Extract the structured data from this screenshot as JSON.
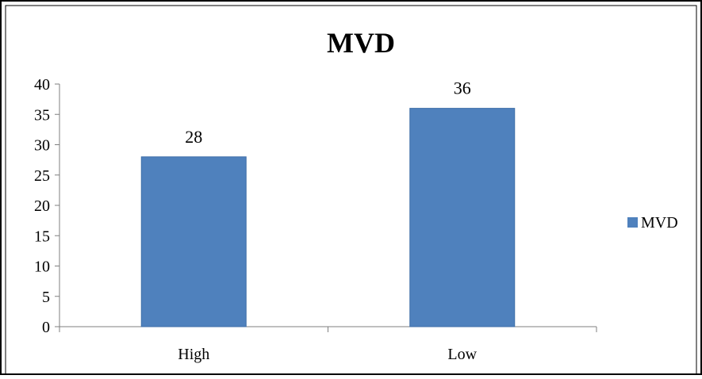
{
  "chart_data": {
    "type": "bar",
    "title": "MVD",
    "categories": [
      "High",
      "Low"
    ],
    "series": [
      {
        "name": "MVD",
        "values": [
          28,
          36
        ]
      }
    ],
    "data_labels": [
      "28",
      "36"
    ],
    "ylim": [
      0,
      40
    ],
    "yticks": [
      0,
      5,
      10,
      15,
      20,
      25,
      30,
      35,
      40
    ],
    "xlabel": "",
    "ylabel": "",
    "grid": false,
    "legend_position": "right",
    "colors": {
      "bar": "#4f81bd",
      "bar_border": "#3f6fa8",
      "axis": "#7f7f7f",
      "frame": "#000000"
    }
  }
}
